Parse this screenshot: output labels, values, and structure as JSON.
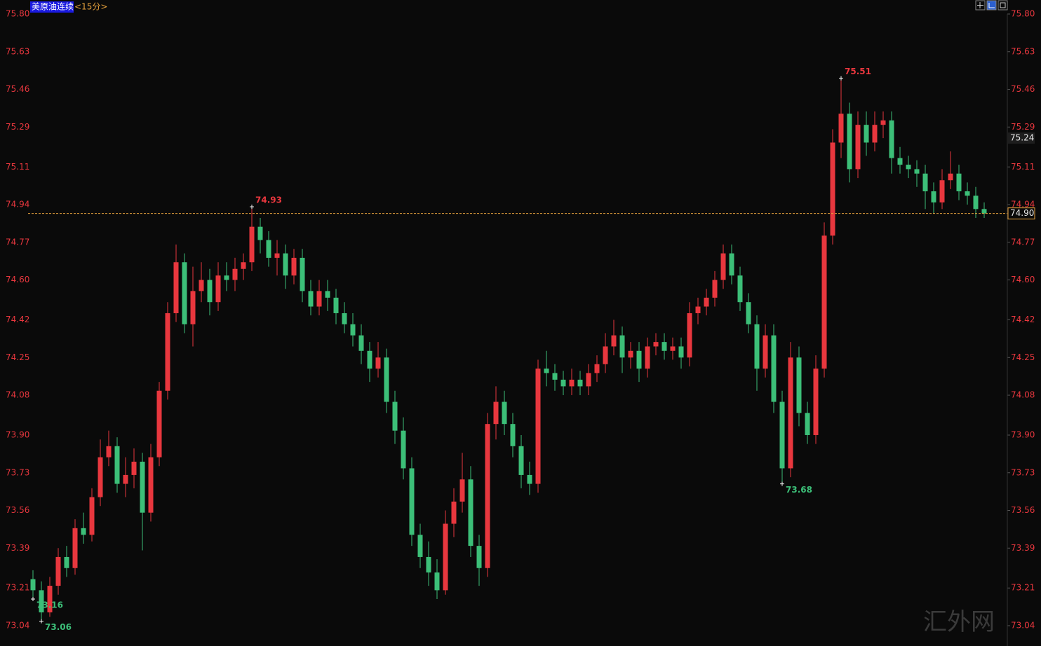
{
  "chart_data": {
    "type": "candlestick",
    "title": "美原油连续",
    "subtitle": "<15分>",
    "ylim": [
      73.04,
      75.8
    ],
    "yticks": [
      {
        "value": 75.8,
        "label": "75.80"
      },
      75.63,
      75.46,
      75.29,
      75.11,
      74.94,
      74.77,
      {
        "value": 74.6,
        "label": "74.60"
      },
      74.42,
      74.25,
      74.08,
      {
        "value": 73.9,
        "label": "73.90"
      },
      73.73,
      73.56,
      73.39,
      73.21,
      73.04
    ],
    "up_color": "#e8373e",
    "down_color": "#3cbf78",
    "last_price": {
      "value": 74.9,
      "label": "74.90"
    },
    "marker_price": 75.24,
    "annotations": [
      74.93,
      75.51,
      73.16,
      73.68,
      73.06
    ],
    "watermark": "汇外网",
    "candles": [
      [
        73.25,
        73.29,
        73.16,
        73.2
      ],
      [
        73.2,
        73.24,
        73.06,
        73.1
      ],
      [
        73.1,
        73.26,
        73.08,
        73.22
      ],
      [
        73.22,
        73.39,
        73.18,
        73.35
      ],
      [
        73.35,
        73.4,
        73.26,
        73.3
      ],
      [
        73.3,
        73.52,
        73.27,
        73.48
      ],
      [
        73.48,
        73.55,
        73.41,
        73.45
      ],
      [
        73.45,
        73.66,
        73.42,
        73.62
      ],
      [
        73.62,
        73.88,
        73.58,
        73.8
      ],
      [
        73.8,
        73.92,
        73.76,
        73.85
      ],
      [
        73.85,
        73.89,
        73.64,
        73.68
      ],
      [
        73.68,
        73.8,
        73.62,
        73.72
      ],
      [
        73.72,
        73.84,
        73.66,
        73.78
      ],
      [
        73.78,
        73.82,
        73.38,
        73.55
      ],
      [
        73.55,
        73.86,
        73.51,
        73.8
      ],
      [
        73.8,
        74.14,
        73.76,
        74.1
      ],
      [
        74.1,
        74.5,
        74.06,
        74.45
      ],
      [
        74.45,
        74.76,
        74.41,
        74.68
      ],
      [
        74.68,
        74.72,
        74.36,
        74.4
      ],
      [
        74.4,
        74.66,
        74.3,
        74.55
      ],
      [
        74.55,
        74.68,
        74.5,
        74.6
      ],
      [
        74.6,
        74.65,
        74.44,
        74.5
      ],
      [
        74.5,
        74.68,
        74.46,
        74.62
      ],
      [
        74.62,
        74.68,
        74.55,
        74.6
      ],
      [
        74.6,
        74.7,
        74.55,
        74.65
      ],
      [
        74.65,
        74.72,
        74.6,
        74.68
      ],
      [
        74.68,
        74.93,
        74.64,
        74.84
      ],
      [
        74.84,
        74.88,
        74.72,
        74.78
      ],
      [
        74.78,
        74.82,
        74.66,
        74.7
      ],
      [
        74.7,
        74.78,
        74.62,
        74.72
      ],
      [
        74.72,
        74.76,
        74.56,
        74.62
      ],
      [
        74.62,
        74.74,
        74.58,
        74.7
      ],
      [
        74.7,
        74.74,
        74.5,
        74.55
      ],
      [
        74.55,
        74.6,
        74.44,
        74.48
      ],
      [
        74.48,
        74.6,
        74.44,
        74.55
      ],
      [
        74.55,
        74.6,
        74.46,
        74.52
      ],
      [
        74.52,
        74.56,
        74.4,
        74.45
      ],
      [
        74.45,
        74.5,
        74.36,
        74.4
      ],
      [
        74.4,
        74.45,
        74.3,
        74.35
      ],
      [
        74.35,
        74.4,
        74.22,
        74.28
      ],
      [
        74.28,
        74.32,
        74.14,
        74.2
      ],
      [
        74.2,
        74.32,
        74.16,
        74.25
      ],
      [
        74.25,
        74.29,
        74.0,
        74.05
      ],
      [
        74.05,
        74.1,
        73.86,
        73.92
      ],
      [
        73.92,
        73.98,
        73.7,
        73.75
      ],
      [
        73.75,
        73.8,
        73.4,
        73.45
      ],
      [
        73.45,
        73.5,
        73.3,
        73.35
      ],
      [
        73.35,
        73.42,
        73.22,
        73.28
      ],
      [
        73.28,
        73.34,
        73.16,
        73.2
      ],
      [
        73.2,
        73.56,
        73.18,
        73.5
      ],
      [
        73.5,
        73.66,
        73.44,
        73.6
      ],
      [
        73.6,
        73.82,
        73.55,
        73.7
      ],
      [
        73.7,
        73.76,
        73.35,
        73.4
      ],
      [
        73.4,
        73.45,
        73.22,
        73.3
      ],
      [
        73.3,
        74.0,
        73.26,
        73.95
      ],
      [
        73.95,
        74.12,
        73.88,
        74.05
      ],
      [
        74.05,
        74.1,
        73.9,
        73.95
      ],
      [
        73.95,
        74.0,
        73.8,
        73.85
      ],
      [
        73.85,
        73.9,
        73.66,
        73.72
      ],
      [
        73.72,
        73.78,
        73.63,
        73.68
      ],
      [
        73.68,
        74.24,
        73.64,
        74.2
      ],
      [
        74.2,
        74.28,
        74.12,
        74.18
      ],
      [
        74.18,
        74.22,
        74.1,
        74.15
      ],
      [
        74.15,
        74.19,
        74.08,
        74.12
      ],
      [
        74.12,
        74.2,
        74.08,
        74.15
      ],
      [
        74.15,
        74.19,
        74.08,
        74.12
      ],
      [
        74.12,
        74.22,
        74.08,
        74.18
      ],
      [
        74.18,
        74.26,
        74.14,
        74.22
      ],
      [
        74.22,
        74.36,
        74.18,
        74.3
      ],
      [
        74.3,
        74.42,
        74.26,
        74.35
      ],
      [
        74.35,
        74.39,
        74.18,
        74.25
      ],
      [
        74.25,
        74.32,
        74.2,
        74.28
      ],
      [
        74.28,
        74.32,
        74.14,
        74.2
      ],
      [
        74.2,
        74.34,
        74.16,
        74.3
      ],
      [
        74.3,
        74.36,
        74.26,
        74.32
      ],
      [
        74.32,
        74.36,
        74.24,
        74.28
      ],
      [
        74.28,
        74.34,
        74.24,
        74.3
      ],
      [
        74.3,
        74.34,
        74.2,
        74.25
      ],
      [
        74.25,
        74.5,
        74.21,
        74.45
      ],
      [
        74.45,
        74.52,
        74.4,
        74.48
      ],
      [
        74.48,
        74.56,
        74.44,
        74.52
      ],
      [
        74.52,
        74.64,
        74.48,
        74.6
      ],
      [
        74.6,
        74.76,
        74.56,
        74.72
      ],
      [
        74.72,
        74.76,
        74.58,
        74.62
      ],
      [
        74.62,
        74.66,
        74.46,
        74.5
      ],
      [
        74.5,
        74.54,
        74.36,
        74.4
      ],
      [
        74.4,
        74.44,
        74.1,
        74.2
      ],
      [
        74.2,
        74.4,
        74.16,
        74.35
      ],
      [
        74.35,
        74.4,
        74.0,
        74.05
      ],
      [
        74.05,
        74.1,
        73.68,
        73.75
      ],
      [
        73.75,
        74.32,
        73.71,
        74.25
      ],
      [
        74.25,
        74.3,
        73.94,
        74.0
      ],
      [
        74.0,
        74.05,
        73.86,
        73.9
      ],
      [
        73.9,
        74.26,
        73.86,
        74.2
      ],
      [
        74.2,
        74.86,
        74.16,
        74.8
      ],
      [
        74.8,
        75.28,
        74.76,
        75.22
      ],
      [
        75.22,
        75.51,
        75.15,
        75.35
      ],
      [
        75.35,
        75.4,
        75.04,
        75.1
      ],
      [
        75.1,
        75.36,
        75.06,
        75.3
      ],
      [
        75.3,
        75.36,
        75.16,
        75.22
      ],
      [
        75.22,
        75.36,
        75.18,
        75.3
      ],
      [
        75.3,
        75.36,
        75.24,
        75.32
      ],
      [
        75.32,
        75.36,
        75.08,
        75.15
      ],
      [
        75.15,
        75.2,
        75.08,
        75.12
      ],
      [
        75.12,
        75.16,
        75.06,
        75.1
      ],
      [
        75.1,
        75.14,
        75.02,
        75.08
      ],
      [
        75.08,
        75.12,
        74.92,
        75.0
      ],
      [
        75.0,
        75.04,
        74.9,
        74.95
      ],
      [
        74.95,
        75.1,
        74.92,
        75.05
      ],
      [
        75.05,
        75.18,
        75.01,
        75.08
      ],
      [
        75.08,
        75.12,
        74.96,
        75.0
      ],
      [
        75.0,
        75.04,
        74.94,
        74.98
      ],
      [
        74.98,
        75.02,
        74.88,
        74.92
      ],
      [
        74.92,
        74.95,
        74.88,
        74.9
      ]
    ]
  }
}
